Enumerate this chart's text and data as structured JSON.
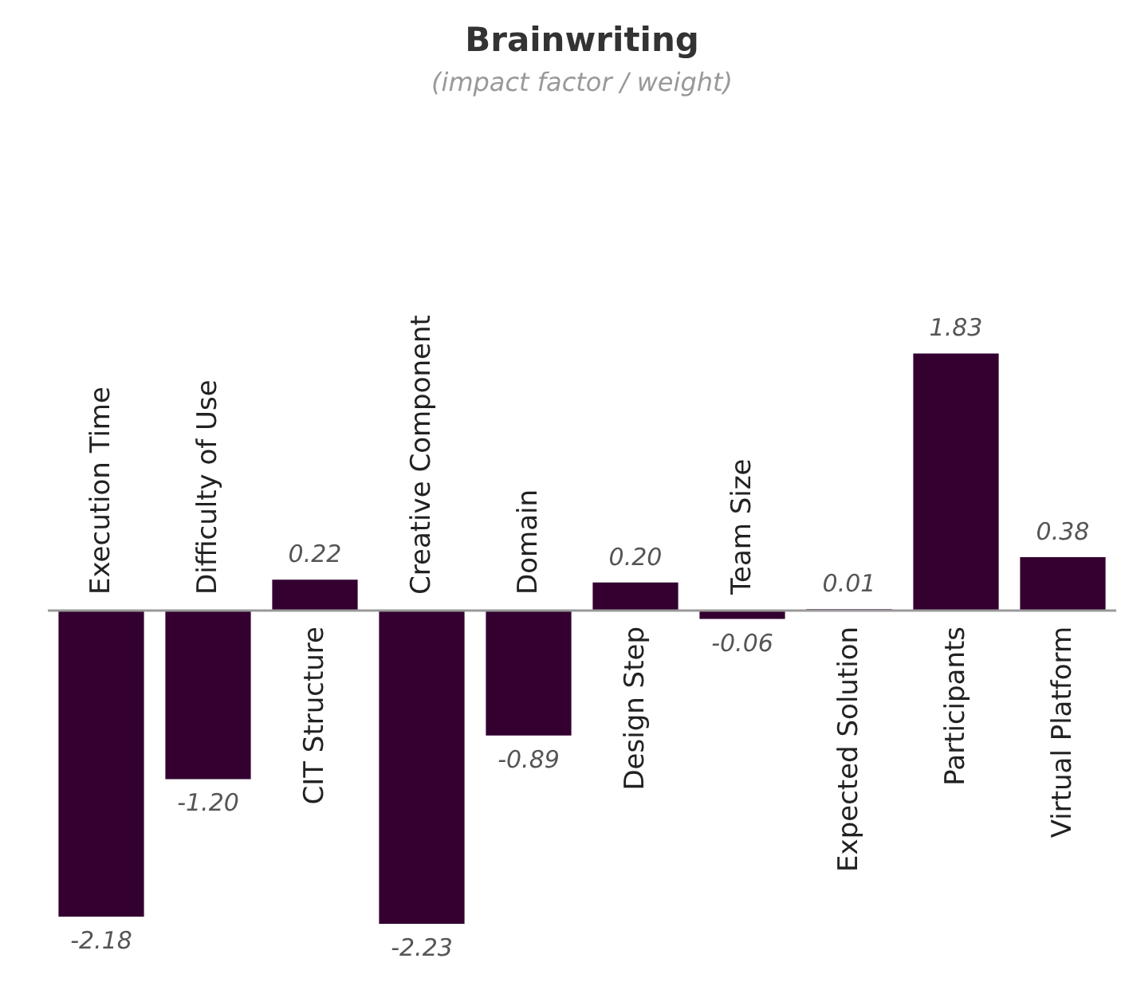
{
  "chart_data": {
    "type": "bar",
    "title": "Brainwriting",
    "subtitle": "(impact factor / weight)",
    "categories": [
      "Execution Time",
      "Difficulty of Use",
      "CIT Structure",
      "Creative Component",
      "Domain",
      "Design Step",
      "Team Size",
      "Expected Solution",
      "Participants",
      "Virtual Platform"
    ],
    "values": [
      -2.18,
      -1.2,
      0.22,
      -2.23,
      -0.89,
      0.2,
      -0.06,
      0.01,
      1.83,
      0.38
    ],
    "value_labels": [
      "-2.18",
      "-1.20",
      "0.22",
      "-2.23",
      "-0.89",
      "0.20",
      "-0.06",
      "0.01",
      "1.83",
      "0.38"
    ],
    "color": "#330030"
  }
}
